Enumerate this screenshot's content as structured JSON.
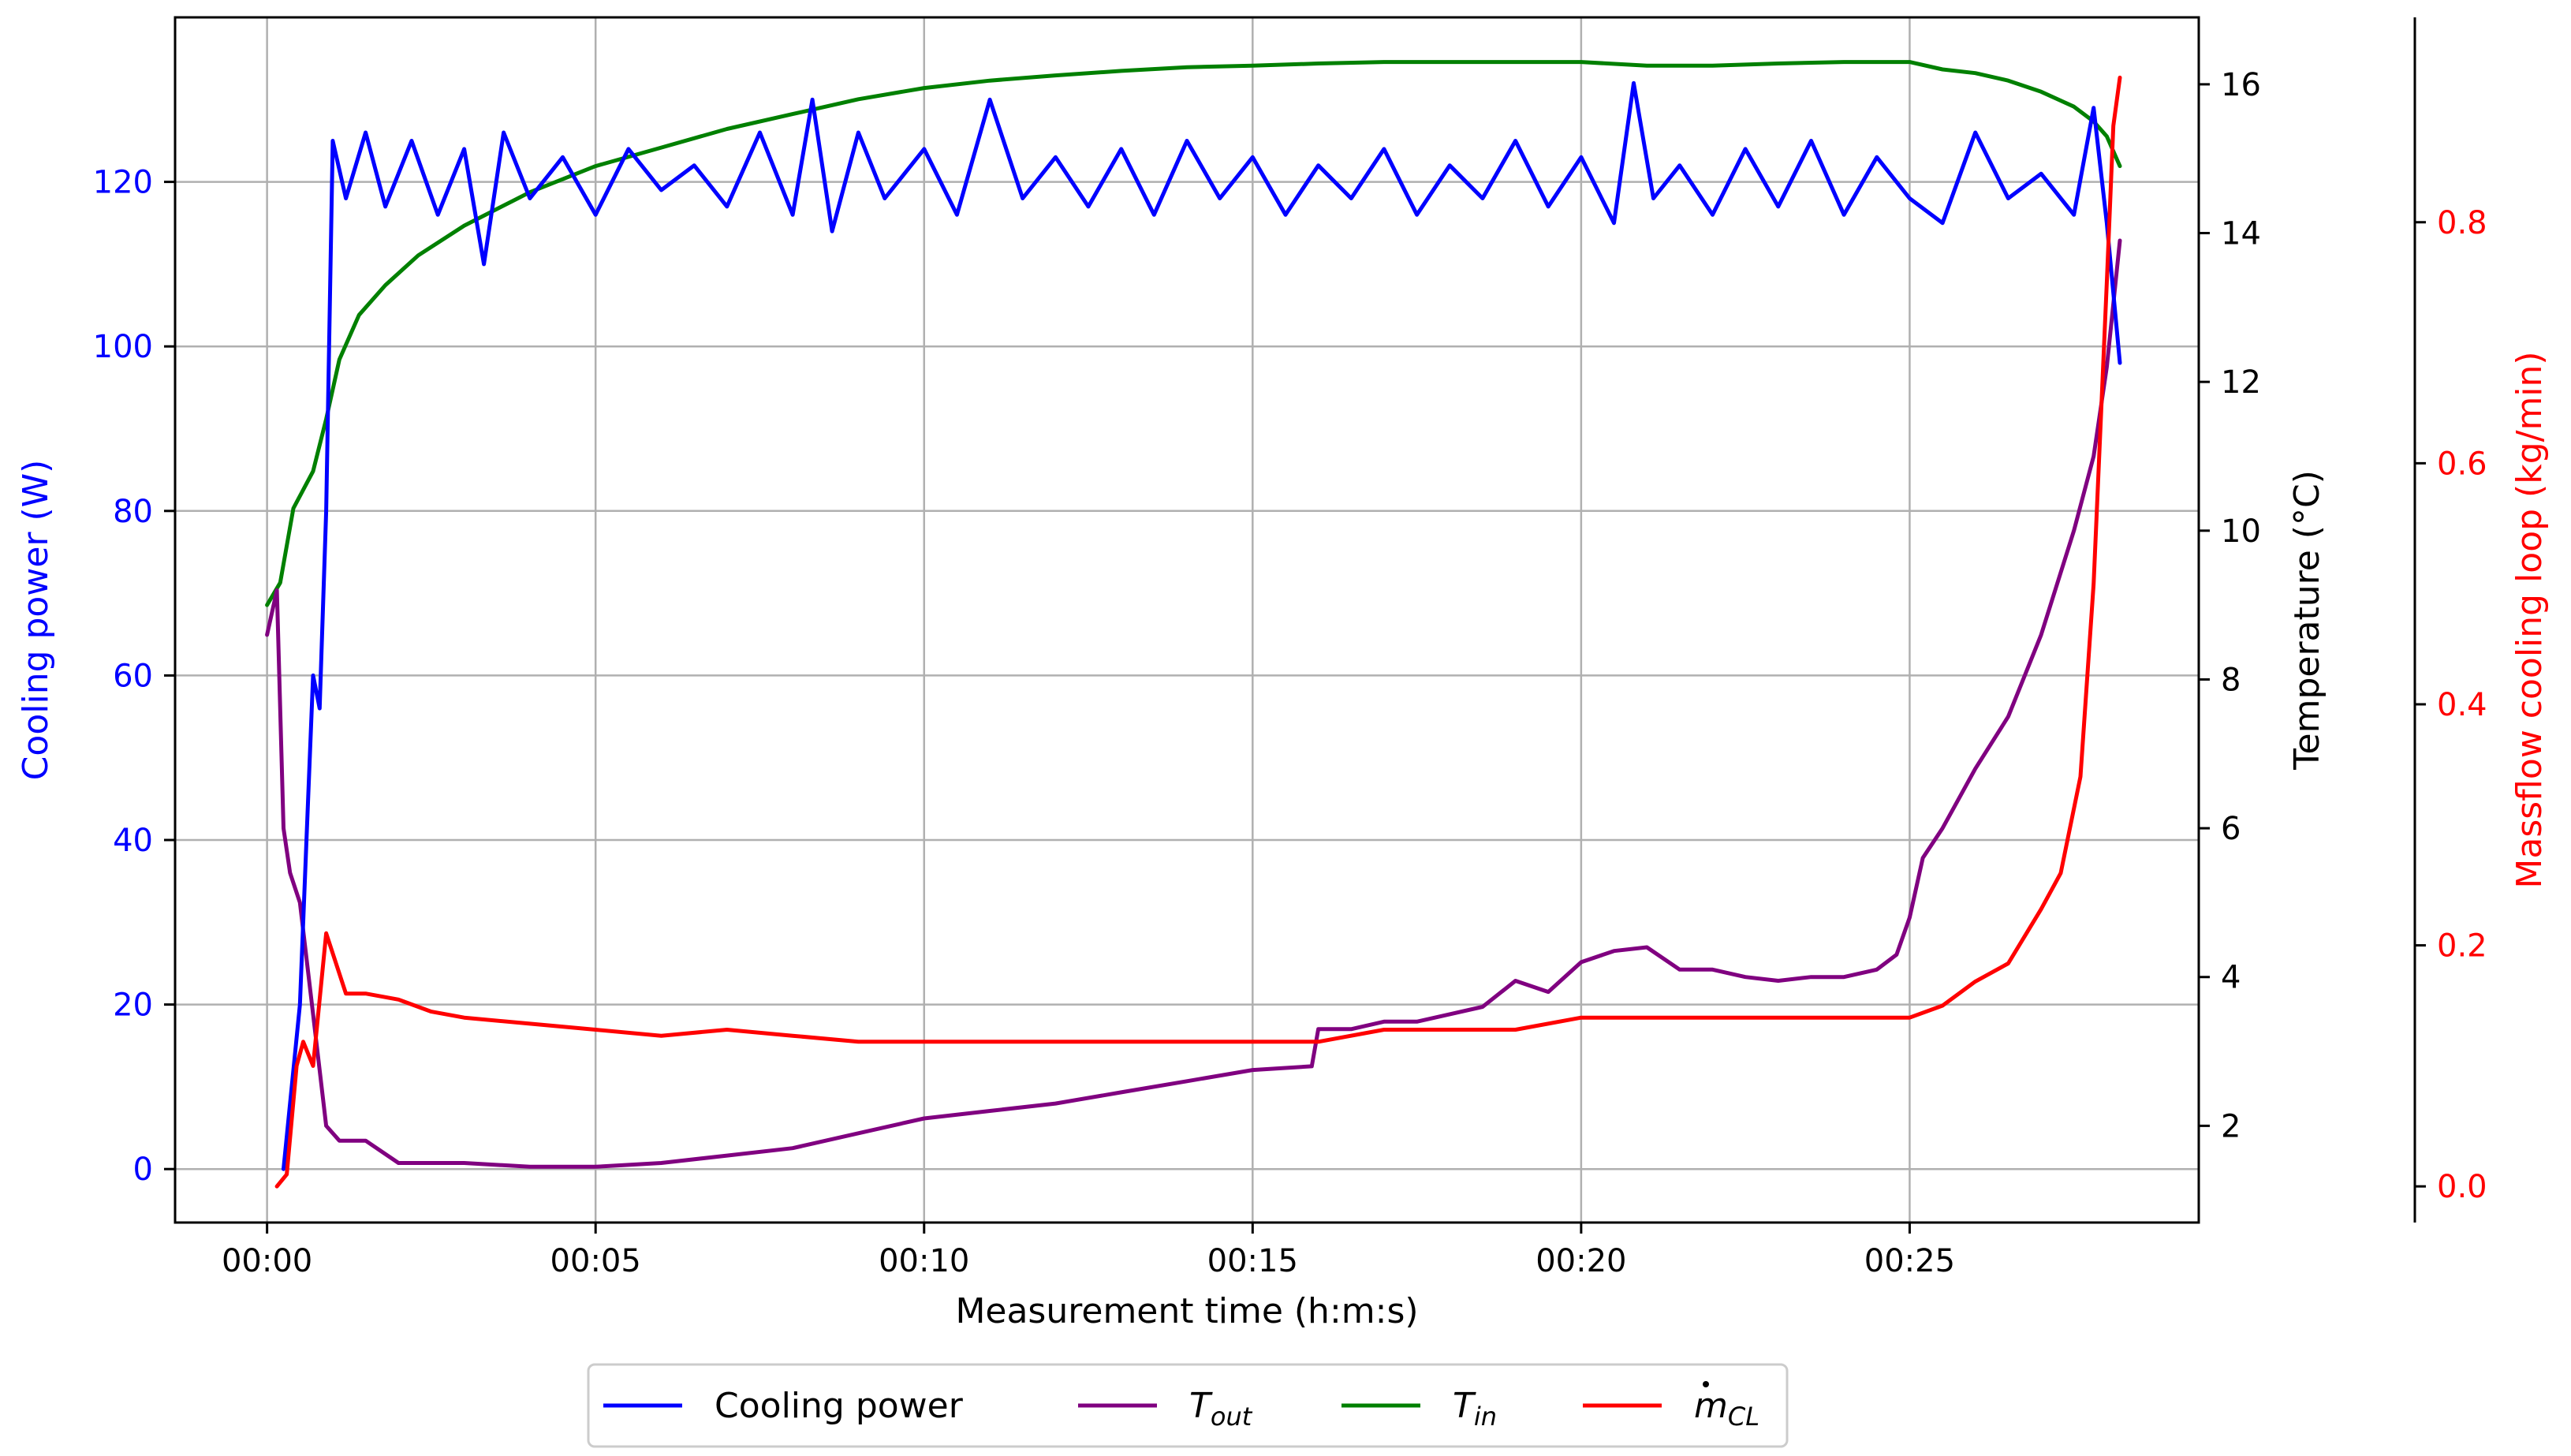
{
  "chart_data": {
    "type": "line",
    "xlabel": "Measurement time (h:m:s)",
    "x_tick_labels": [
      "00:00",
      "00:05",
      "00:10",
      "00:15",
      "00:20",
      "00:25"
    ],
    "x_tick_minutes": [
      0,
      5,
      10,
      15,
      20,
      25
    ],
    "xlim_minutes": [
      -1.4,
      29.4
    ],
    "axes": {
      "left": {
        "label": "Cooling power (W)",
        "color": "#0000ff",
        "ylim": [
          -6.5,
          140
        ],
        "ticks": [
          0,
          20,
          40,
          60,
          80,
          100,
          120
        ]
      },
      "right1": {
        "label": "Temperature (°C)",
        "color": "#000000",
        "ylim": [
          0.7,
          16.9
        ],
        "ticks": [
          2,
          4,
          6,
          8,
          10,
          12,
          14,
          16
        ]
      },
      "right2": {
        "label": "Massflow cooling loop (kg/min)",
        "color": "#ff0000",
        "ylim": [
          -0.03,
          0.97
        ],
        "ticks": [
          "0.0",
          "0.2",
          "0.4",
          "0.6",
          "0.8"
        ],
        "tick_values": [
          0.0,
          0.2,
          0.4,
          0.6,
          0.8
        ]
      }
    },
    "grid": true,
    "legend_position": "bottom-center",
    "series": [
      {
        "name": "Cooling power",
        "legend_text": "Cooling power",
        "axis": "left",
        "color": "#0000ff",
        "x": [
          0.25,
          0.5,
          0.6,
          0.7,
          0.8,
          0.9,
          1.0,
          1.2,
          1.5,
          1.8,
          2.2,
          2.6,
          3.0,
          3.3,
          3.6,
          4.0,
          4.5,
          5.0,
          5.5,
          6.0,
          6.5,
          7.0,
          7.5,
          8.0,
          8.3,
          8.6,
          9.0,
          9.4,
          10.0,
          10.5,
          11.0,
          11.5,
          12.0,
          12.5,
          13.0,
          13.5,
          14.0,
          14.5,
          15.0,
          15.5,
          16.0,
          16.5,
          17.0,
          17.5,
          18.0,
          18.5,
          19.0,
          19.5,
          20.0,
          20.5,
          20.8,
          21.1,
          21.5,
          22.0,
          22.5,
          23.0,
          23.5,
          24.0,
          24.5,
          25.0,
          25.5,
          26.0,
          26.5,
          27.0,
          27.5,
          27.8,
          28.0,
          28.2
        ],
        "y": [
          0,
          20,
          40,
          60,
          56,
          80,
          125,
          118,
          126,
          117,
          125,
          116,
          124,
          110,
          126,
          118,
          123,
          116,
          124,
          119,
          122,
          117,
          126,
          116,
          130,
          114,
          126,
          118,
          124,
          116,
          130,
          118,
          123,
          117,
          124,
          116,
          125,
          118,
          123,
          116,
          122,
          118,
          124,
          116,
          122,
          118,
          125,
          117,
          123,
          115,
          132,
          118,
          122,
          116,
          124,
          117,
          125,
          116,
          123,
          118,
          115,
          126,
          118,
          121,
          116,
          129,
          115,
          98
        ]
      },
      {
        "name": "T_out",
        "legend_text": "T",
        "legend_sub": "out",
        "axis": "right1",
        "color": "#800080",
        "x": [
          0.0,
          0.15,
          0.25,
          0.35,
          0.5,
          0.7,
          0.9,
          1.1,
          1.5,
          2.0,
          2.5,
          3.0,
          4.0,
          5.0,
          6.0,
          7.0,
          8.0,
          9.0,
          10.0,
          11.0,
          12.0,
          13.0,
          14.0,
          15.0,
          15.9,
          16.0,
          16.5,
          17.0,
          17.5,
          18.0,
          18.5,
          19.0,
          19.5,
          20.0,
          20.5,
          21.0,
          21.5,
          22.0,
          22.5,
          23.0,
          23.5,
          24.0,
          24.5,
          24.8,
          25.0,
          25.2,
          25.5,
          26.0,
          26.5,
          27.0,
          27.5,
          27.8,
          28.0,
          28.2
        ],
        "y": [
          8.6,
          9.2,
          6.0,
          5.4,
          5.0,
          3.5,
          2.0,
          1.8,
          1.8,
          1.5,
          1.5,
          1.5,
          1.45,
          1.45,
          1.5,
          1.6,
          1.7,
          1.9,
          2.1,
          2.2,
          2.3,
          2.45,
          2.6,
          2.75,
          2.8,
          3.3,
          3.3,
          3.4,
          3.4,
          3.5,
          3.6,
          3.95,
          3.8,
          4.2,
          4.35,
          4.4,
          4.1,
          4.1,
          4.0,
          3.95,
          4.0,
          4.0,
          4.1,
          4.3,
          4.8,
          5.6,
          6.0,
          6.8,
          7.5,
          8.6,
          10.0,
          11.0,
          12.2,
          13.9
        ]
      },
      {
        "name": "T_in",
        "legend_text": "T",
        "legend_sub": "in",
        "axis": "right1",
        "color": "#008000",
        "x": [
          0.0,
          0.2,
          0.4,
          0.7,
          0.9,
          1.1,
          1.4,
          1.8,
          2.3,
          3.0,
          4.0,
          5.0,
          6.0,
          7.0,
          8.0,
          9.0,
          10.0,
          11.0,
          12.0,
          13.0,
          14.0,
          15.0,
          16.0,
          17.0,
          18.0,
          19.0,
          20.0,
          21.0,
          22.0,
          23.0,
          24.0,
          25.0,
          25.5,
          26.0,
          26.5,
          27.0,
          27.5,
          27.8,
          28.0,
          28.2
        ],
        "y": [
          9.0,
          9.3,
          10.3,
          10.8,
          11.5,
          12.3,
          12.9,
          13.3,
          13.7,
          14.1,
          14.55,
          14.9,
          15.15,
          15.4,
          15.6,
          15.8,
          15.95,
          16.05,
          16.12,
          16.18,
          16.23,
          16.25,
          16.28,
          16.3,
          16.3,
          16.3,
          16.3,
          16.25,
          16.25,
          16.28,
          16.3,
          16.3,
          16.2,
          16.15,
          16.05,
          15.9,
          15.7,
          15.5,
          15.3,
          14.9
        ]
      },
      {
        "name": "m_CL",
        "legend_text": "m",
        "legend_sub": "CL",
        "axis": "right2",
        "color": "#ff0000",
        "x": [
          0.15,
          0.3,
          0.45,
          0.55,
          0.7,
          0.9,
          1.2,
          1.5,
          2.0,
          2.5,
          3.0,
          4.0,
          5.0,
          6.0,
          7.0,
          8.0,
          9.0,
          10.0,
          11.0,
          12.0,
          13.0,
          14.0,
          15.0,
          16.0,
          17.0,
          18.0,
          19.0,
          20.0,
          20.8,
          21.5,
          22.0,
          23.0,
          24.0,
          25.0,
          25.5,
          26.0,
          26.5,
          27.0,
          27.3,
          27.6,
          27.8,
          28.0,
          28.1,
          28.2
        ],
        "y": [
          0.0,
          0.01,
          0.1,
          0.12,
          0.1,
          0.21,
          0.16,
          0.16,
          0.155,
          0.145,
          0.14,
          0.135,
          0.13,
          0.125,
          0.13,
          0.125,
          0.12,
          0.12,
          0.12,
          0.12,
          0.12,
          0.12,
          0.12,
          0.12,
          0.13,
          0.13,
          0.13,
          0.14,
          0.14,
          0.14,
          0.14,
          0.14,
          0.14,
          0.14,
          0.15,
          0.17,
          0.185,
          0.23,
          0.26,
          0.34,
          0.5,
          0.75,
          0.88,
          0.92
        ]
      }
    ]
  }
}
